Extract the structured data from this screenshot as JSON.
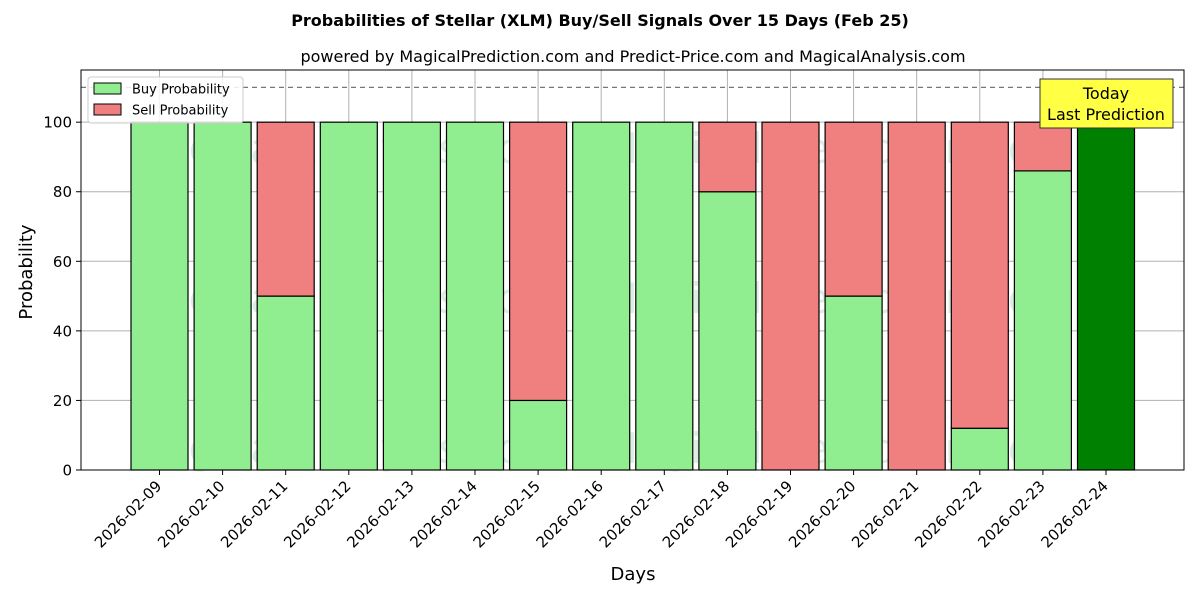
{
  "chart_data": {
    "type": "bar",
    "stacked": true,
    "title": "Probabilities of Stellar (XLM) Buy/Sell Signals Over 15 Days (Feb 25)",
    "subtitle": "powered by MagicalPrediction.com and Predict-Price.com and MagicalAnalysis.com",
    "xlabel": "Days",
    "ylabel": "Probability",
    "ylim": [
      0,
      115
    ],
    "yticks": [
      0,
      20,
      40,
      60,
      80,
      100
    ],
    "grid": true,
    "legend_position": "top-left",
    "reference_line": {
      "y": 110,
      "style": "dashed"
    },
    "categories": [
      "2026-02-09",
      "2026-02-10",
      "2026-02-11",
      "2026-02-12",
      "2026-02-13",
      "2026-02-14",
      "2026-02-15",
      "2026-02-16",
      "2026-02-17",
      "2026-02-18",
      "2026-02-19",
      "2026-02-20",
      "2026-02-21",
      "2026-02-22",
      "2026-02-23",
      "2026-02-24"
    ],
    "series": [
      {
        "name": "Buy Probability",
        "color": "#90ee90",
        "values": [
          100,
          100,
          50,
          100,
          100,
          100,
          20,
          100,
          100,
          80,
          0,
          50,
          0,
          12,
          86,
          100
        ]
      },
      {
        "name": "Sell Probability",
        "color": "#f08080",
        "values": [
          0,
          0,
          50,
          0,
          0,
          0,
          80,
          0,
          0,
          20,
          100,
          50,
          100,
          88,
          14,
          0
        ]
      }
    ],
    "highlight": {
      "index": 15,
      "color": "#008000"
    },
    "annotation": {
      "lines": [
        "Today",
        "Last Prediction"
      ],
      "background": "#ffff44"
    },
    "watermarks": [
      "MagicalAnalysis.com",
      "MagicalPrediction.com"
    ]
  }
}
